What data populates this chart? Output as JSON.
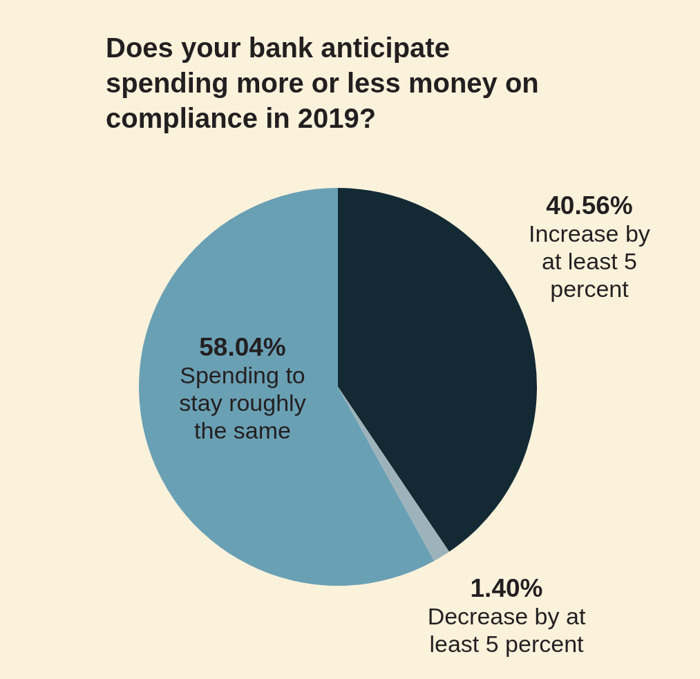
{
  "chart_data": {
    "type": "pie",
    "title": "Does your bank anticipate spending more or less money on compliance in 2019?",
    "categories": [
      "Increase by at least 5 percent",
      "Decrease by at least 5 percent",
      "Spending to stay roughly the same"
    ],
    "values": [
      40.56,
      1.4,
      58.04
    ],
    "value_labels": [
      "40.56%",
      "1.40%",
      "58.04%"
    ],
    "colors": [
      "#132a34",
      "#9db3bb",
      "#6aa0b4"
    ]
  }
}
